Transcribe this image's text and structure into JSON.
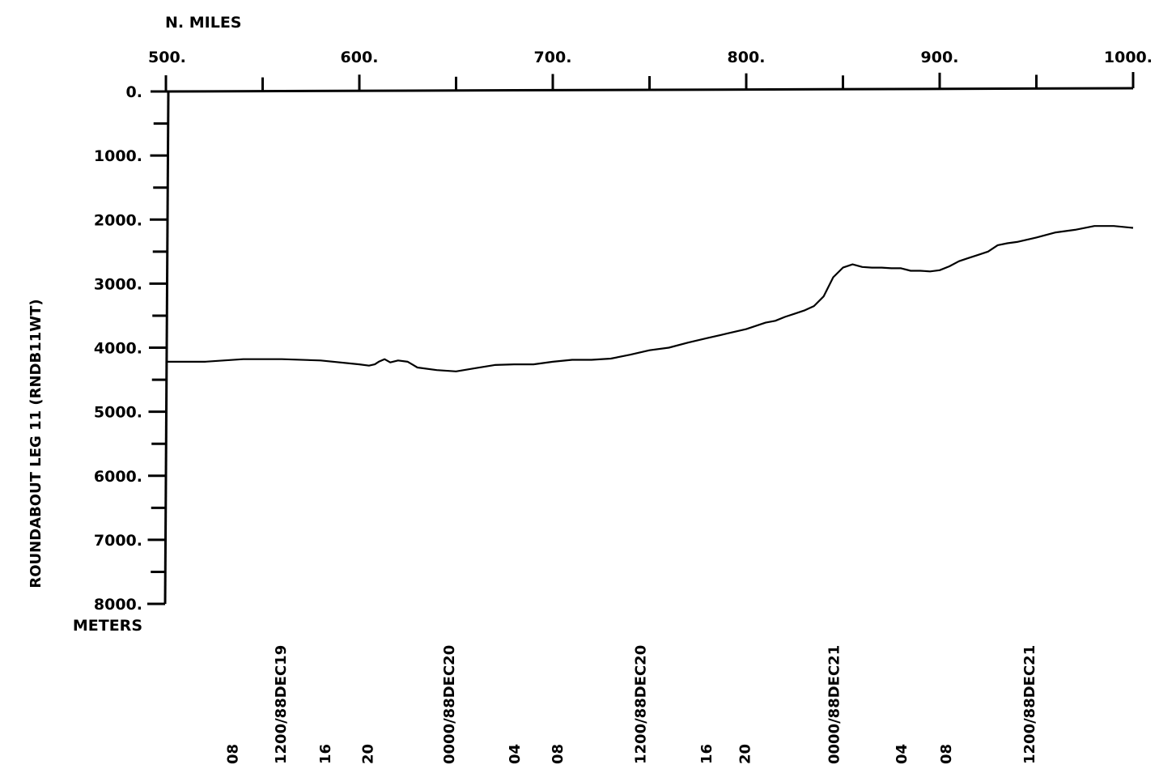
{
  "chart_data": {
    "type": "line",
    "title": "",
    "top_axis_unit": "N. MILES",
    "left_axis_unit": "METERS",
    "ylabel": "ROUNDABOUT LEG 11  (RNDB11WT)",
    "xlim": [
      500,
      1000
    ],
    "ylim": [
      0,
      8000
    ],
    "y_inverted": true,
    "x_ticks": [
      {
        "value": 500,
        "label": "500."
      },
      {
        "value": 600,
        "label": "600."
      },
      {
        "value": 700,
        "label": "700."
      },
      {
        "value": 800,
        "label": "800."
      },
      {
        "value": 900,
        "label": "900."
      },
      {
        "value": 1000,
        "label": "1000."
      }
    ],
    "x_minor_ticks": [
      550,
      650,
      750,
      850,
      950
    ],
    "y_ticks": [
      {
        "value": 0,
        "label": "0."
      },
      {
        "value": 1000,
        "label": "1000."
      },
      {
        "value": 2000,
        "label": "2000."
      },
      {
        "value": 3000,
        "label": "3000."
      },
      {
        "value": 4000,
        "label": "4000."
      },
      {
        "value": 5000,
        "label": "5000."
      },
      {
        "value": 6000,
        "label": "6000."
      },
      {
        "value": 7000,
        "label": "7000."
      },
      {
        "value": 8000,
        "label": "8000."
      }
    ],
    "y_minor_ticks": [
      500,
      1500,
      2500,
      3500,
      4500,
      5500,
      6500,
      7500
    ],
    "time_labels": [
      {
        "x": 534,
        "label": "08"
      },
      {
        "x": 559,
        "label": "1200/88DEC19"
      },
      {
        "x": 582,
        "label": "16"
      },
      {
        "x": 604,
        "label": "20"
      },
      {
        "x": 646,
        "label": "0000/88DEC20"
      },
      {
        "x": 680,
        "label": "04"
      },
      {
        "x": 702,
        "label": "08"
      },
      {
        "x": 745,
        "label": "1200/88DEC20"
      },
      {
        "x": 779,
        "label": "16"
      },
      {
        "x": 799,
        "label": "20"
      },
      {
        "x": 845,
        "label": "0000/88DEC21"
      },
      {
        "x": 880,
        "label": "04"
      },
      {
        "x": 903,
        "label": "08"
      },
      {
        "x": 946,
        "label": "1200/88DEC21"
      }
    ],
    "series": [
      {
        "color": "#000000",
        "x": [
          500,
          520,
          540,
          560,
          580,
          600,
          605,
          608,
          610,
          613,
          616,
          620,
          625,
          630,
          640,
          650,
          660,
          670,
          680,
          690,
          700,
          710,
          720,
          730,
          740,
          750,
          760,
          770,
          780,
          790,
          800,
          810,
          815,
          820,
          825,
          830,
          835,
          840,
          845,
          850,
          855,
          860,
          865,
          870,
          875,
          880,
          885,
          890,
          895,
          900,
          905,
          910,
          915,
          920,
          925,
          930,
          935,
          940,
          950,
          960,
          970,
          980,
          990,
          1000
        ],
        "y": [
          4220,
          4220,
          4180,
          4180,
          4200,
          4260,
          4280,
          4260,
          4220,
          4180,
          4230,
          4200,
          4220,
          4310,
          4350,
          4370,
          4320,
          4270,
          4260,
          4260,
          4220,
          4190,
          4190,
          4170,
          4110,
          4040,
          4000,
          3920,
          3850,
          3780,
          3710,
          3610,
          3580,
          3520,
          3470,
          3420,
          3350,
          3200,
          2900,
          2750,
          2700,
          2740,
          2750,
          2750,
          2760,
          2760,
          2800,
          2800,
          2810,
          2790,
          2730,
          2650,
          2600,
          2550,
          2500,
          2400,
          2370,
          2350,
          2280,
          2200,
          2160,
          2100,
          2100,
          2130
        ]
      }
    ]
  }
}
